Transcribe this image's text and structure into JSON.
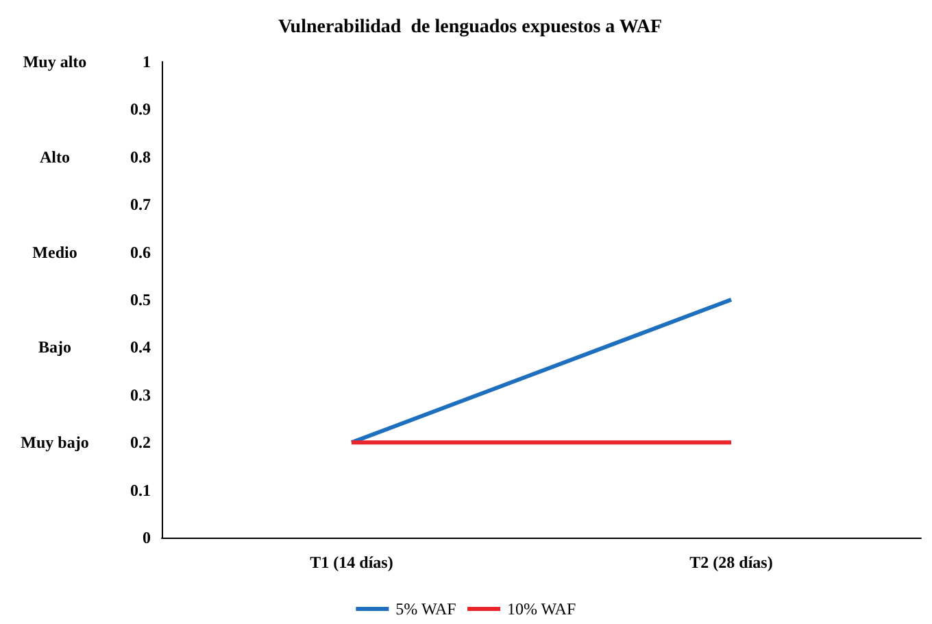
{
  "chart_data": {
    "type": "line",
    "title": "Vulnerabilidad  de lenguados expuestos a WAF",
    "categories": [
      "T1 (14 días)",
      "T2 (28 días)"
    ],
    "series": [
      {
        "name": "5% WAF",
        "color": "#1f6fbf",
        "values": [
          0.2,
          0.5
        ]
      },
      {
        "name": "10% WAF",
        "color": "#e8262b",
        "values": [
          0.2,
          0.2
        ]
      }
    ],
    "ylim": [
      0,
      1
    ],
    "yticks": [
      0,
      0.1,
      0.2,
      0.3,
      0.4,
      0.5,
      0.6,
      0.7,
      0.8,
      0.9,
      1
    ],
    "annotations": [
      "Muy alto",
      "Alto",
      "Medio",
      "Bajo",
      "Muy bajo"
    ],
    "grid": false,
    "legend": "bottom",
    "marker": "none",
    "line_style": "solid"
  }
}
